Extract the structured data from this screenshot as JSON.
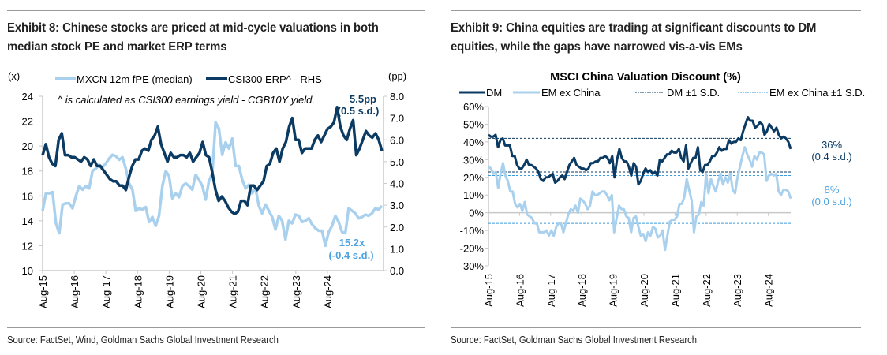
{
  "exhibit8": {
    "title": "Exhibit 8: Chinese stocks are priced at mid-cycle valuations in both median stock PE and market ERP terms",
    "source": "Source: FactSet, Wind, Goldman Sachs Global Investment Research",
    "note": "^ is calculated as CSI300 earnings yield - CGB10Y yield."
  },
  "exhibit9": {
    "title": "Exhibit 9: China equities are trading at significant discounts to DM equities, while the gaps have narrowed vis-a-vis EMs",
    "source": "Source: FactSet, Goldman Sachs Global Investment Research"
  },
  "colors": {
    "dark": "#0b3a62",
    "light": "#a9d1ee",
    "light_label": "#4da3e0",
    "dashed_light": "#3b9ad9",
    "axis": "#c8c8c8"
  },
  "chart_data": [
    {
      "type": "line",
      "title": "",
      "ylabel": "(x)",
      "y2label": "(pp)",
      "ylim": [
        10,
        24
      ],
      "y2lim": [
        0,
        8
      ],
      "yticks": [
        "10",
        "12",
        "14",
        "16",
        "18",
        "20",
        "22",
        "24"
      ],
      "y2ticks": [
        "0.0",
        "1.0",
        "2.0",
        "3.0",
        "4.0",
        "5.0",
        "6.0",
        "7.0",
        "8.0"
      ],
      "xticks": [
        "Aug-15",
        "Aug-16",
        "Aug-17",
        "Aug-18",
        "Aug-19",
        "Aug-20",
        "Aug-21",
        "Aug-22",
        "Aug-23",
        "Aug-24"
      ],
      "x_range": [
        "Aug-15",
        "Jun-25"
      ],
      "legend": "top",
      "series": [
        {
          "name": "MXCN 12m fPE (median)",
          "axis": "left",
          "color": "#a9d1ee",
          "values": [
            14.8,
            16.2,
            16.2,
            16.3,
            13.8,
            13.0,
            15.3,
            15.4,
            15.4,
            15.0,
            16.0,
            16.8,
            16.5,
            16.8,
            16.6,
            18.0,
            18.2,
            18.5,
            18.3,
            18.6,
            19.0,
            19.3,
            19.2,
            18.9,
            19.1,
            18.2,
            17.0,
            16.5,
            14.8,
            15.0,
            14.9,
            15.1,
            13.9,
            14.3,
            13.6,
            14.4,
            16.8,
            18.0,
            17.6,
            15.8,
            16.2,
            15.9,
            16.8,
            17.0,
            16.8,
            16.5,
            17.7,
            17.3,
            16.8,
            15.7,
            17.2,
            17.8,
            21.9,
            21.4,
            19.3,
            20.3,
            19.8,
            20.6,
            18.4,
            18.4,
            17.3,
            16.6,
            16.9,
            16.2,
            16.6,
            15.2,
            14.6,
            15.3,
            14.8,
            14.3,
            13.3,
            14.4,
            14.0,
            12.5,
            14.0,
            13.8,
            14.5,
            14.4,
            13.9,
            14.0,
            14.2,
            13.7,
            13.4,
            13.2,
            13.2,
            12.0,
            13.1,
            13.6,
            14.4,
            13.9,
            13.1,
            13.0,
            15.0,
            14.8,
            14.6,
            14.2,
            14.3,
            14.5,
            14.4,
            14.6,
            15.0,
            14.9,
            15.2
          ]
        },
        {
          "name": "CSI300 ERP^ - RHS",
          "axis": "right",
          "color": "#0b3a62",
          "values": [
            5.3,
            5.8,
            5.2,
            4.9,
            4.8,
            6.0,
            6.3,
            5.3,
            5.3,
            5.2,
            5.2,
            5.1,
            5.0,
            5.2,
            5.1,
            4.8,
            5.1,
            4.8,
            4.8,
            4.6,
            4.4,
            4.2,
            4.1,
            4.1,
            3.9,
            3.9,
            3.7,
            4.3,
            4.8,
            5.1,
            5.1,
            5.5,
            5.6,
            5.5,
            6.0,
            6.2,
            6.6,
            5.8,
            5.4,
            5.0,
            5.4,
            5.2,
            5.2,
            5.3,
            5.3,
            5.2,
            5.4,
            5.0,
            5.2,
            5.4,
            5.9,
            5.3,
            5.2,
            4.5,
            3.7,
            3.2,
            3.4,
            3.2,
            2.9,
            2.7,
            2.6,
            2.7,
            3.2,
            3.2,
            3.0,
            3.9,
            3.9,
            3.7,
            3.9,
            4.1,
            4.8,
            4.9,
            5.4,
            5.6,
            5.0,
            5.6,
            5.9,
            6.6,
            7.0,
            6.0,
            6.0,
            5.4,
            5.6,
            5.6,
            5.6,
            6.0,
            6.2,
            5.9,
            6.2,
            6.5,
            6.6,
            6.8,
            7.5,
            6.6,
            6.2,
            6.0,
            6.5,
            6.9,
            5.3,
            5.6,
            6.0,
            6.4,
            6.2,
            6.1,
            6.3,
            6.0,
            5.5
          ]
        }
      ],
      "annotations": [
        {
          "text": "5.5pp",
          "sub": "(0.5 s.d.)",
          "series": "CSI300 ERP^ - RHS"
        },
        {
          "text": "15.2x",
          "sub": "(-0.4 s.d.)",
          "series": "MXCN 12m fPE (median)"
        }
      ]
    },
    {
      "type": "line",
      "title": "MSCI China Valuation Discount (%)",
      "ylim": [
        -30,
        60
      ],
      "yticks": [
        "-30%",
        "-20%",
        "-10%",
        "0%",
        "10%",
        "20%",
        "30%",
        "40%",
        "50%",
        "60%"
      ],
      "xticks": [
        "Aug-15",
        "Aug-16",
        "Aug-17",
        "Aug-18",
        "Aug-19",
        "Aug-20",
        "Aug-21",
        "Aug-22",
        "Aug-23",
        "Aug-24"
      ],
      "x_range": [
        "Aug-15",
        "Jun-25"
      ],
      "legend": "top",
      "series": [
        {
          "name": "DM",
          "color": "#0b3a62",
          "values": [
            44,
            43,
            43,
            44,
            37,
            41,
            42,
            38,
            38,
            38,
            32,
            32,
            27,
            25,
            25,
            27,
            30,
            27,
            27,
            26,
            25,
            23,
            19,
            18,
            20,
            20,
            21,
            22,
            17,
            18,
            20,
            21,
            19,
            23,
            27,
            29,
            31,
            27,
            26,
            25,
            25,
            24,
            25,
            28,
            28,
            29,
            29,
            31,
            31,
            32,
            31,
            28,
            32,
            20,
            30,
            36,
            31,
            29,
            29,
            26,
            21,
            28,
            26,
            16,
            18,
            22,
            25,
            23,
            24,
            22,
            23,
            21,
            30,
            29,
            31,
            33,
            33,
            35,
            34,
            34,
            36,
            31,
            29,
            38,
            25,
            28,
            31,
            31,
            37,
            24,
            23,
            27,
            27,
            29,
            32,
            32,
            34,
            37,
            35,
            36,
            36,
            41,
            39,
            40,
            40,
            42,
            41,
            46,
            50,
            54,
            52,
            52,
            48,
            49,
            51,
            50,
            44,
            46,
            50,
            48,
            46,
            48,
            44,
            42,
            43,
            42,
            40,
            36
          ]
        },
        {
          "name": "EM ex China",
          "color": "#a9d1ee",
          "values": [
            26,
            25,
            22,
            23,
            14,
            22,
            28,
            21,
            18,
            12,
            12,
            5,
            3,
            5,
            1,
            6,
            -1,
            -2,
            -3,
            -6,
            -6,
            -11,
            -11,
            -11,
            -10,
            -13,
            -10,
            -13,
            -8,
            -6,
            -6,
            -11,
            -6,
            -1,
            2,
            1,
            4,
            0,
            8,
            7,
            5,
            2,
            4,
            12,
            10,
            10,
            11,
            12,
            12,
            10,
            7,
            10,
            -11,
            -3,
            4,
            2,
            2,
            -2,
            -3,
            -11,
            -3,
            -2,
            -8,
            -13,
            -12,
            -16,
            -11,
            -13,
            -8,
            -9,
            -14,
            -13,
            -10,
            -21,
            -13,
            -5,
            -4,
            -4,
            -2,
            5,
            5,
            9,
            19,
            13,
            7,
            -11,
            -2,
            -1,
            6,
            4,
            22,
            11,
            19,
            15,
            12,
            18,
            22,
            16,
            20,
            17,
            22,
            13,
            11,
            20,
            26,
            32,
            37,
            33,
            30,
            26,
            32,
            30,
            34,
            34,
            33,
            18,
            21,
            22,
            21,
            22,
            12,
            10,
            13,
            13,
            12,
            8
          ]
        }
      ],
      "reference_lines": [
        {
          "name": "DM ±1 S.D.",
          "values": [
            42,
            23
          ],
          "color": "#0b3a62"
        },
        {
          "name": "EM ex China ±1 S.D.",
          "values": [
            21,
            -6
          ],
          "color": "#3b9ad9"
        }
      ],
      "annotations": [
        {
          "text": "36%",
          "sub": "(0.4 s.d.)",
          "series": "DM"
        },
        {
          "text": "8%",
          "sub": "(0.0 s.d.)",
          "series": "EM ex China"
        }
      ]
    }
  ]
}
